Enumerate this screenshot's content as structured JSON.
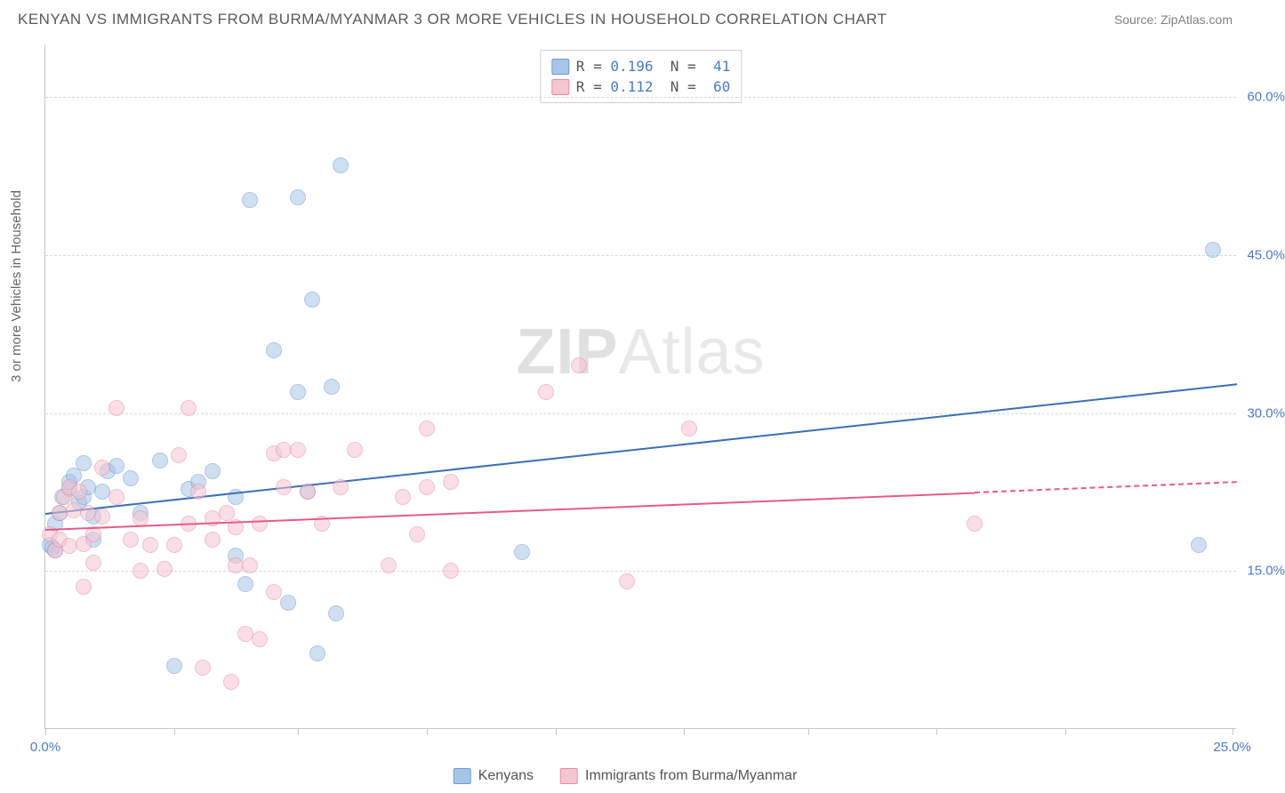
{
  "header": {
    "title": "KENYAN VS IMMIGRANTS FROM BURMA/MYANMAR 3 OR MORE VEHICLES IN HOUSEHOLD CORRELATION CHART",
    "source": "Source: ZipAtlas.com"
  },
  "chart": {
    "type": "scatter",
    "ylabel": "3 or more Vehicles in Household",
    "watermark_zip": "ZIP",
    "watermark_rest": "Atlas",
    "xlim": [
      0,
      25
    ],
    "ylim": [
      0,
      65
    ],
    "xtick_positions": [
      0,
      2.7,
      5.3,
      8.0,
      10.7,
      13.4,
      16.0,
      18.7,
      21.4,
      24.9
    ],
    "xtick_labels": {
      "0": "0.0%",
      "24.9": "25.0%"
    },
    "ytick_positions": [
      15,
      30,
      45,
      60
    ],
    "ytick_labels": [
      "15.0%",
      "30.0%",
      "45.0%",
      "60.0%"
    ],
    "grid_color": "#d8d8d8",
    "axis_color": "#c8c8c8",
    "background_color": "#ffffff",
    "marker_radius": 9,
    "marker_opacity": 0.55,
    "series": [
      {
        "name": "Kenyans",
        "fill": "#a8c5e8",
        "stroke": "#6b9bd1",
        "line_color": "#3a6fb8",
        "R": "0.196",
        "N": "41",
        "trend": {
          "x1": 0,
          "y1": 20.5,
          "x2": 25,
          "y2": 32.8
        },
        "points": [
          [
            0.1,
            17.5
          ],
          [
            0.15,
            17.2
          ],
          [
            0.2,
            17.0
          ],
          [
            0.2,
            19.5
          ],
          [
            0.3,
            20.5
          ],
          [
            0.35,
            22.0
          ],
          [
            0.5,
            22.8
          ],
          [
            0.5,
            23.5
          ],
          [
            0.6,
            24.1
          ],
          [
            0.7,
            21.5
          ],
          [
            0.8,
            22.0
          ],
          [
            0.8,
            25.2
          ],
          [
            0.9,
            23.0
          ],
          [
            1.0,
            18.0
          ],
          [
            1.0,
            20.2
          ],
          [
            1.2,
            22.5
          ],
          [
            1.3,
            24.5
          ],
          [
            1.5,
            25.0
          ],
          [
            1.8,
            23.8
          ],
          [
            2.0,
            20.5
          ],
          [
            2.4,
            25.5
          ],
          [
            2.7,
            6.0
          ],
          [
            3.0,
            22.8
          ],
          [
            3.2,
            23.5
          ],
          [
            3.5,
            24.5
          ],
          [
            4.0,
            16.5
          ],
          [
            4.0,
            22.0
          ],
          [
            4.2,
            13.8
          ],
          [
            4.3,
            50.2
          ],
          [
            4.8,
            36.0
          ],
          [
            5.1,
            12.0
          ],
          [
            5.3,
            32.0
          ],
          [
            5.3,
            50.5
          ],
          [
            5.5,
            22.5
          ],
          [
            5.6,
            40.8
          ],
          [
            5.7,
            7.2
          ],
          [
            6.0,
            32.5
          ],
          [
            6.1,
            11.0
          ],
          [
            6.2,
            53.5
          ],
          [
            10.0,
            16.8
          ],
          [
            24.2,
            17.5
          ],
          [
            24.5,
            45.5
          ]
        ]
      },
      {
        "name": "Immigrants from Burma/Myanmar",
        "fill": "#f5c5d0",
        "stroke": "#e88ba5",
        "line_color": "#e65a8a",
        "R": "0.112",
        "N": "60",
        "trend": {
          "x1": 0,
          "y1": 19.0,
          "x2": 19.5,
          "y2": 22.5
        },
        "trend_dash": {
          "x1": 19.5,
          "y1": 22.5,
          "x2": 25,
          "y2": 23.5
        },
        "points": [
          [
            0.1,
            18.5
          ],
          [
            0.2,
            17.0
          ],
          [
            0.3,
            18.0
          ],
          [
            0.3,
            20.5
          ],
          [
            0.4,
            22.0
          ],
          [
            0.5,
            17.4
          ],
          [
            0.5,
            23.0
          ],
          [
            0.6,
            20.8
          ],
          [
            0.7,
            22.5
          ],
          [
            0.8,
            13.5
          ],
          [
            0.8,
            17.6
          ],
          [
            0.9,
            20.5
          ],
          [
            1.0,
            15.8
          ],
          [
            1.0,
            18.5
          ],
          [
            1.2,
            20.2
          ],
          [
            1.2,
            24.8
          ],
          [
            1.5,
            22.0
          ],
          [
            1.5,
            30.5
          ],
          [
            1.8,
            18.0
          ],
          [
            2.0,
            15.0
          ],
          [
            2.0,
            20.0
          ],
          [
            2.2,
            17.5
          ],
          [
            2.5,
            15.2
          ],
          [
            2.7,
            17.5
          ],
          [
            2.8,
            26.0
          ],
          [
            3.0,
            19.5
          ],
          [
            3.0,
            30.5
          ],
          [
            3.2,
            22.5
          ],
          [
            3.3,
            5.8
          ],
          [
            3.5,
            18.0
          ],
          [
            3.5,
            20.0
          ],
          [
            3.8,
            20.5
          ],
          [
            3.9,
            4.5
          ],
          [
            4.0,
            15.5
          ],
          [
            4.0,
            19.2
          ],
          [
            4.2,
            9.0
          ],
          [
            4.3,
            15.5
          ],
          [
            4.5,
            8.5
          ],
          [
            4.5,
            19.5
          ],
          [
            4.8,
            13.0
          ],
          [
            4.8,
            26.2
          ],
          [
            5.0,
            23.0
          ],
          [
            5.0,
            26.5
          ],
          [
            5.3,
            26.5
          ],
          [
            5.5,
            22.5
          ],
          [
            5.8,
            19.5
          ],
          [
            6.2,
            23.0
          ],
          [
            6.5,
            26.5
          ],
          [
            7.2,
            15.5
          ],
          [
            7.5,
            22.0
          ],
          [
            7.8,
            18.5
          ],
          [
            8.0,
            23.0
          ],
          [
            8.0,
            28.5
          ],
          [
            8.5,
            15.0
          ],
          [
            8.5,
            23.5
          ],
          [
            10.5,
            32.0
          ],
          [
            11.2,
            34.5
          ],
          [
            12.2,
            14.0
          ],
          [
            13.5,
            28.5
          ],
          [
            19.5,
            19.5
          ]
        ]
      }
    ]
  }
}
